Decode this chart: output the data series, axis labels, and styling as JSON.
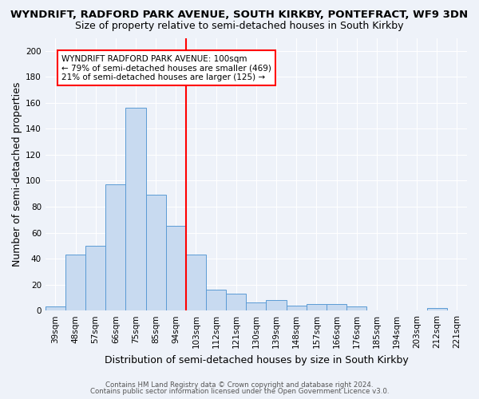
{
  "title": "WYNDRIFT, RADFORD PARK AVENUE, SOUTH KIRKBY, PONTEFRACT, WF9 3DN",
  "subtitle": "Size of property relative to semi-detached houses in South Kirkby",
  "xlabel": "Distribution of semi-detached houses by size in South Kirkby",
  "ylabel": "Number of semi-detached properties",
  "footer1": "Contains HM Land Registry data © Crown copyright and database right 2024.",
  "footer2": "Contains public sector information licensed under the Open Government Licence v3.0.",
  "categories": [
    "39sqm",
    "48sqm",
    "57sqm",
    "66sqm",
    "75sqm",
    "85sqm",
    "94sqm",
    "103sqm",
    "112sqm",
    "121sqm",
    "130sqm",
    "139sqm",
    "148sqm",
    "157sqm",
    "166sqm",
    "176sqm",
    "185sqm",
    "194sqm",
    "203sqm",
    "212sqm",
    "221sqm"
  ],
  "values": [
    3,
    43,
    50,
    97,
    156,
    89,
    65,
    43,
    16,
    13,
    6,
    8,
    4,
    5,
    5,
    3,
    0,
    0,
    0,
    2,
    0
  ],
  "bar_color": "#c8daf0",
  "bar_edge_color": "#5b9bd5",
  "vline_color": "red",
  "vline_pos": 7.5,
  "annotation_title": "WYNDRIFT RADFORD PARK AVENUE: 100sqm",
  "annotation_line2": "← 79% of semi-detached houses are smaller (469)",
  "annotation_line3": "21% of semi-detached houses are larger (125) →",
  "annotation_box_color": "white",
  "annotation_box_edge": "red",
  "ylim": [
    0,
    210
  ],
  "yticks": [
    0,
    20,
    40,
    60,
    80,
    100,
    120,
    140,
    160,
    180,
    200
  ],
  "bg_color": "#eef2f9",
  "title_fontsize": 9.5,
  "subtitle_fontsize": 9,
  "tick_fontsize": 7.5,
  "label_fontsize": 9
}
